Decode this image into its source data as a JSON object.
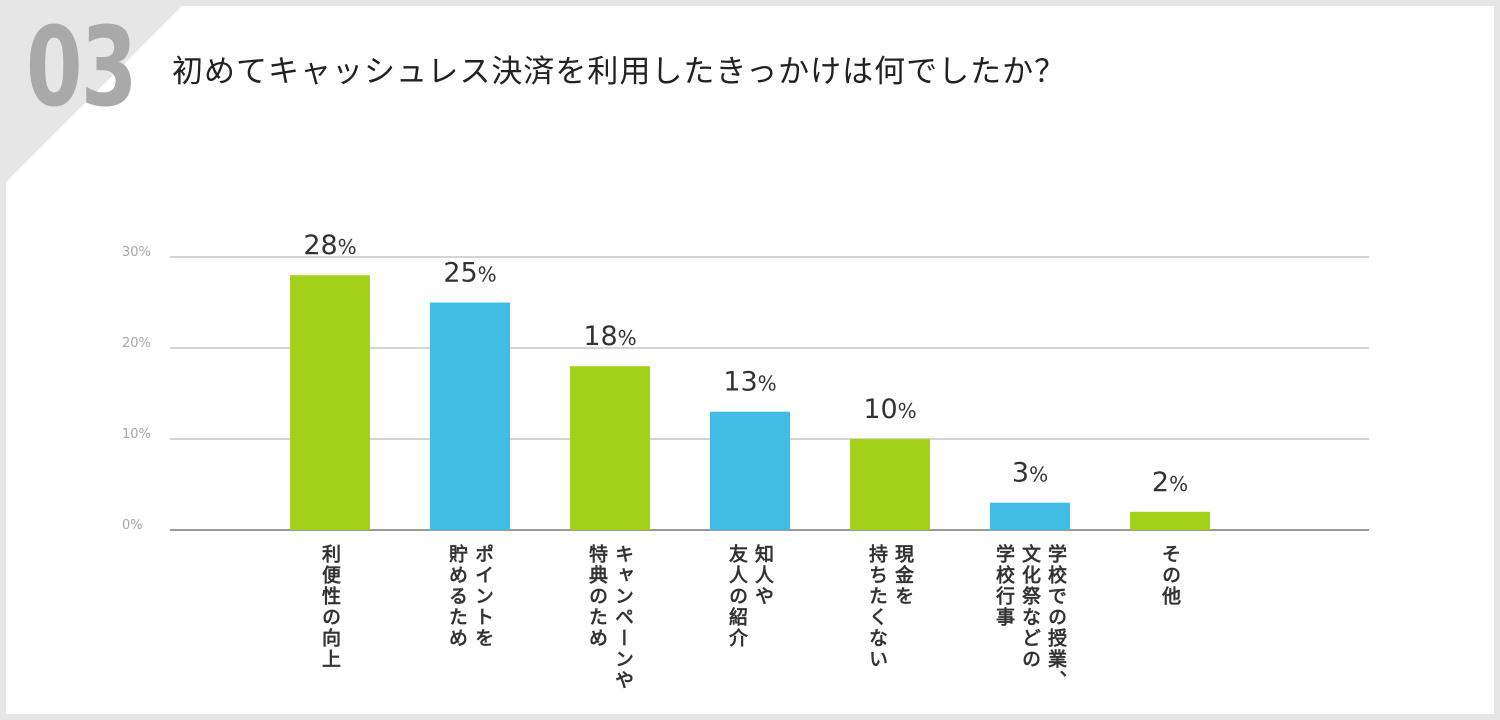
{
  "question_number": "03",
  "title": "初めてキャッシュレス決済を利用したきっかけは何でしたか？",
  "colors": {
    "green": "#a4d11a",
    "blue": "#41bce5",
    "grid": "#aaaaaa",
    "axis": "#333333"
  },
  "chart_data": {
    "type": "bar",
    "title": "",
    "xlabel": "",
    "ylabel": "",
    "ylim": [
      0,
      30
    ],
    "yticks": [
      {
        "value": 0,
        "label": "0%"
      },
      {
        "value": 10,
        "label": "10%"
      },
      {
        "value": 20,
        "label": "20%"
      },
      {
        "value": 30,
        "label": "30%"
      }
    ],
    "grid": true,
    "categories": [
      "利便性の向上",
      "ポイントを\n貯めるため",
      "キャンペーンや\n特典のため",
      "知人や\n友人の紹介",
      "現金を\n持ちたくない",
      "学校での授業、\n文化祭などの\n学校行事",
      "その他"
    ],
    "values": [
      28,
      25,
      18,
      13,
      10,
      3,
      2
    ],
    "value_labels": [
      "28",
      "25",
      "18",
      "13",
      "10",
      "3",
      "2"
    ],
    "value_unit": "%",
    "bar_colors": [
      "green",
      "blue",
      "green",
      "blue",
      "green",
      "blue",
      "green"
    ]
  }
}
